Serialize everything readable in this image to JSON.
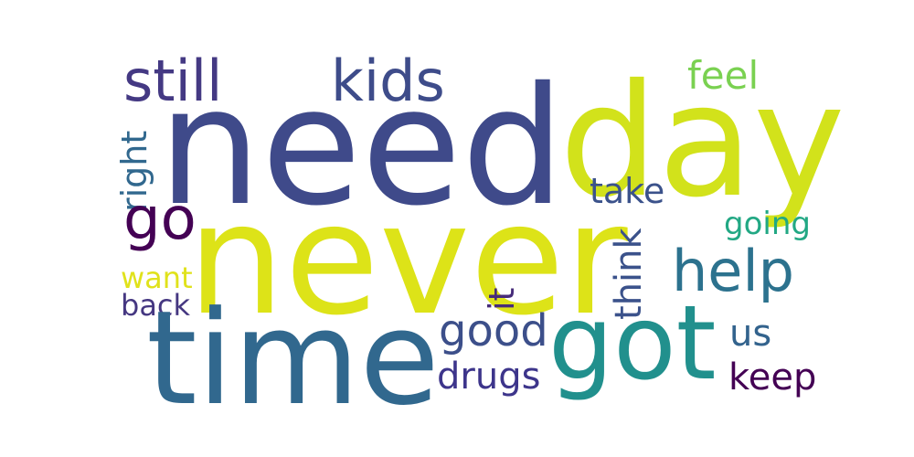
{
  "wordcloud": {
    "background": "#ffffff",
    "words": {
      "need": {
        "text": "need",
        "color": "#3f4a8a"
      },
      "day": {
        "text": "day",
        "color": "#d2e21b"
      },
      "never": {
        "text": "never",
        "color": "#dde318"
      },
      "time": {
        "text": "time",
        "color": "#31688e"
      },
      "got": {
        "text": "got",
        "color": "#21908d"
      },
      "still": {
        "text": "still",
        "color": "#443983"
      },
      "kids": {
        "text": "kids",
        "color": "#3e4c8a"
      },
      "feel": {
        "text": "feel",
        "color": "#7ad151"
      },
      "right": {
        "text": "right",
        "color": "#31688e"
      },
      "go": {
        "text": "go",
        "color": "#440154"
      },
      "take": {
        "text": "take",
        "color": "#3b528b"
      },
      "going": {
        "text": "going",
        "color": "#22a884"
      },
      "help": {
        "text": "help",
        "color": "#2c728e"
      },
      "want": {
        "text": "want",
        "color": "#e0e21b"
      },
      "back": {
        "text": "back",
        "color": "#453781"
      },
      "it": {
        "text": "it",
        "color": "#472c7a"
      },
      "think": {
        "text": "think",
        "color": "#3b528b"
      },
      "good": {
        "text": "good",
        "color": "#3c4f8a"
      },
      "drugs": {
        "text": "drugs",
        "color": "#3d358b"
      },
      "us": {
        "text": "us",
        "color": "#33638d"
      },
      "keep": {
        "text": "keep",
        "color": "#440154"
      }
    }
  }
}
